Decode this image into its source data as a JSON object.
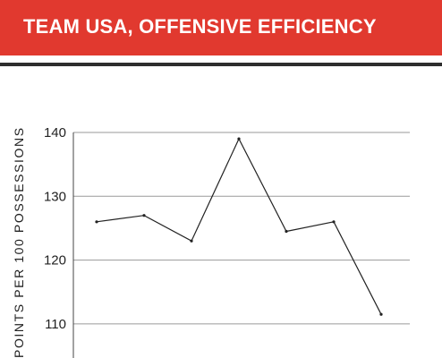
{
  "header": {
    "title": "TEAM USA, OFFENSIVE EFFICIENCY"
  },
  "colors": {
    "header_bg": "#e1392f",
    "divider": "#2e2e2e",
    "line": "#222222",
    "grid": "#9a9a9a"
  },
  "chart_data": {
    "type": "line",
    "title": "TEAM USA, OFFENSIVE EFFICIENCY",
    "ylabel": "POINTS PER 100 POSSESSIONS",
    "xlabel": "",
    "ylim": [
      110,
      140
    ],
    "y_ticks": [
      140,
      130,
      120,
      110
    ],
    "grid": true,
    "series": [
      {
        "values": [
          126,
          127,
          123,
          139,
          124.5,
          126,
          111.5
        ]
      }
    ]
  }
}
